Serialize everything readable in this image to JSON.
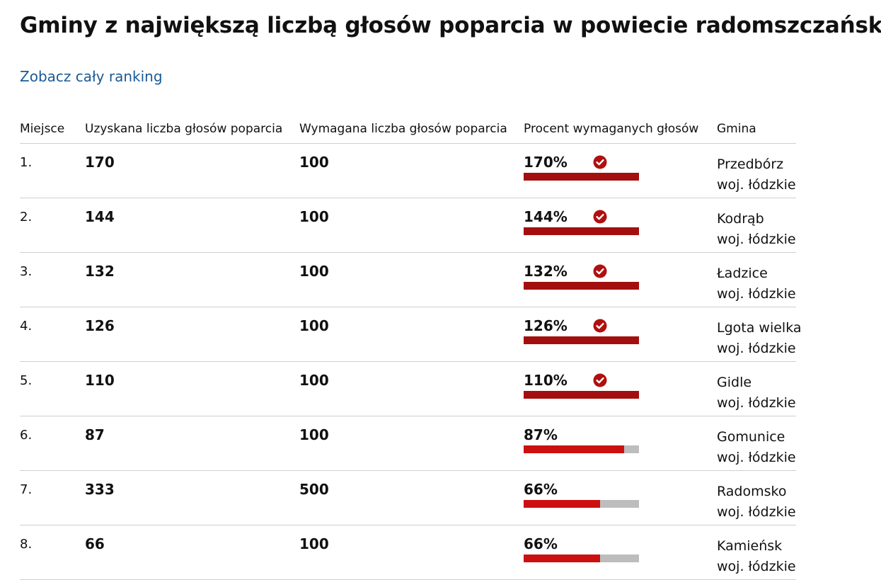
{
  "title": "Gminy z największą liczbą głosów poparcia w powiecie radomszczański",
  "ranking_link": "Zobacz cały ranking",
  "table": {
    "headers": {
      "place": "Miejsce",
      "obtained": "Uzyskana liczba głosów poparcia",
      "required": "Wymagana liczba głosów poparcia",
      "percent": "Procent wymaganych głosów",
      "gmina": "Gmina"
    },
    "rows": [
      {
        "place": "1.",
        "obtained": "170",
        "required": "100",
        "percent_label": "170%",
        "percent": 170,
        "met": true,
        "gmina": "Przedbórz",
        "woj": "woj. łódzkie"
      },
      {
        "place": "2.",
        "obtained": "144",
        "required": "100",
        "percent_label": "144%",
        "percent": 144,
        "met": true,
        "gmina": "Kodrąb",
        "woj": "woj. łódzkie"
      },
      {
        "place": "3.",
        "obtained": "132",
        "required": "100",
        "percent_label": "132%",
        "percent": 132,
        "met": true,
        "gmina": "Ładzice",
        "woj": "woj. łódzkie"
      },
      {
        "place": "4.",
        "obtained": "126",
        "required": "100",
        "percent_label": "126%",
        "percent": 126,
        "met": true,
        "gmina": "Lgota wielka",
        "woj": "woj. łódzkie"
      },
      {
        "place": "5.",
        "obtained": "110",
        "required": "100",
        "percent_label": "110%",
        "percent": 110,
        "met": true,
        "gmina": "Gidle",
        "woj": "woj. łódzkie"
      },
      {
        "place": "6.",
        "obtained": "87",
        "required": "100",
        "percent_label": "87%",
        "percent": 87,
        "met": false,
        "gmina": "Gomunice",
        "woj": "woj. łódzkie"
      },
      {
        "place": "7.",
        "obtained": "333",
        "required": "500",
        "percent_label": "66%",
        "percent": 66,
        "met": false,
        "gmina": "Radomsko",
        "woj": "woj. łódzkie"
      },
      {
        "place": "8.",
        "obtained": "66",
        "required": "100",
        "percent_label": "66%",
        "percent": 66,
        "met": false,
        "gmina": "Kamieńsk",
        "woj": "woj. łódzkie"
      }
    ]
  },
  "colors": {
    "link": "#1a5a96",
    "bar_met": "#a30f0f",
    "bar_partial": "#cc1010",
    "bar_track": "#bdbdbd",
    "check": "#b01010"
  },
  "icons": {
    "met": "check-circle-icon"
  }
}
